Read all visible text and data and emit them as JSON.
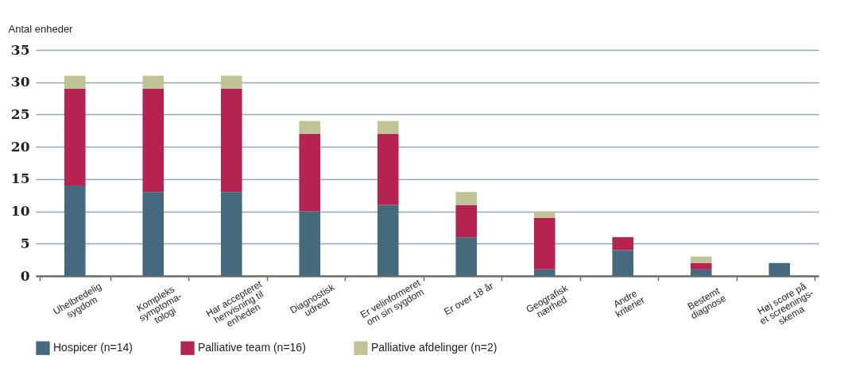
{
  "chart_data": {
    "type": "bar",
    "stacked": true,
    "ylabel": "Antal enheder",
    "categories": [
      "Uhelbredelig\nsygdom",
      "Kompleks\nsymptoma-\ntologi",
      "Har accepteret\nhenvisning til\nenheden",
      "Diagnostisk\nudredt",
      "Er velinformeret\nom sin sygdom",
      "Er over 18 år",
      "Geografisk\nnærhed",
      "Andre\nkriterier",
      "Bestemt\ndiagnose",
      "Høj score på\net screenings-\nskema"
    ],
    "series": [
      {
        "name": "Hospicer (n=14)",
        "color": "#456a7e",
        "values": [
          14,
          13,
          13,
          10,
          11,
          6,
          1,
          4,
          1,
          2
        ]
      },
      {
        "name": "Palliative team (n=16)",
        "color": "#b52350",
        "values": [
          15,
          16,
          16,
          12,
          11,
          5,
          8,
          2,
          1,
          0
        ]
      },
      {
        "name": "Palliative afdelinger (n=2)",
        "color": "#bfc395",
        "values": [
          2,
          2,
          2,
          2,
          2,
          2,
          1,
          0,
          1,
          0
        ]
      }
    ],
    "ylim": [
      0,
      35
    ],
    "yticks": [
      0,
      5,
      10,
      15,
      20,
      25,
      30,
      35
    ],
    "grid": "y",
    "legend": "bottom left"
  }
}
